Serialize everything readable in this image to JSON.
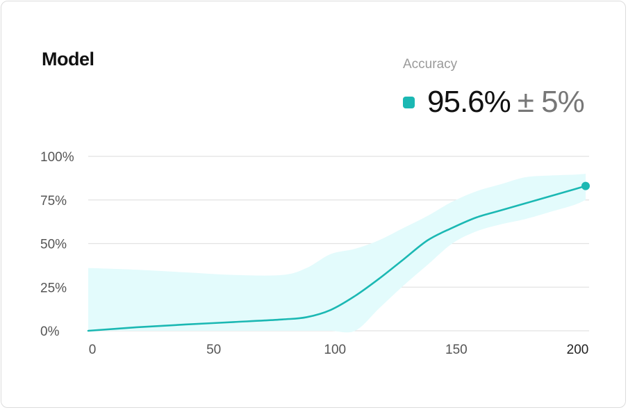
{
  "card": {
    "title": "Model",
    "metric_label": "Accuracy",
    "metric_value": "95.6%",
    "metric_margin": "± 5%"
  },
  "colors": {
    "line": "#1bb8b3",
    "band": "#e3fbfc",
    "grid": "#e2e2e2"
  },
  "chart_data": {
    "type": "line",
    "x": [
      0,
      20,
      40,
      60,
      80,
      90,
      100,
      110,
      120,
      130,
      140,
      150,
      160,
      170,
      180,
      190,
      200,
      205
    ],
    "series": [
      {
        "values": [
          0,
          2,
          3.6,
          5,
          6.5,
          7.8,
          12,
          20,
          30,
          41,
          52,
          59,
          65,
          69,
          73,
          77,
          81,
          83
        ],
        "upper": [
          36,
          35,
          33.5,
          32,
          32,
          36,
          44,
          47,
          52,
          59,
          66,
          74,
          80,
          84,
          88,
          89,
          89.5,
          90
        ],
        "lower": [
          0,
          0,
          0,
          0,
          0,
          0,
          0,
          0,
          13,
          26,
          38,
          50,
          57,
          61,
          64,
          68,
          72,
          75
        ]
      }
    ],
    "x_ticks": [
      "0",
      "50",
      "100",
      "150",
      "200"
    ],
    "y_ticks": [
      "0%",
      "25%",
      "50%",
      "75%",
      "100%"
    ],
    "xlim": [
      0,
      205
    ],
    "ylim": [
      0,
      100
    ],
    "grid": true
  }
}
